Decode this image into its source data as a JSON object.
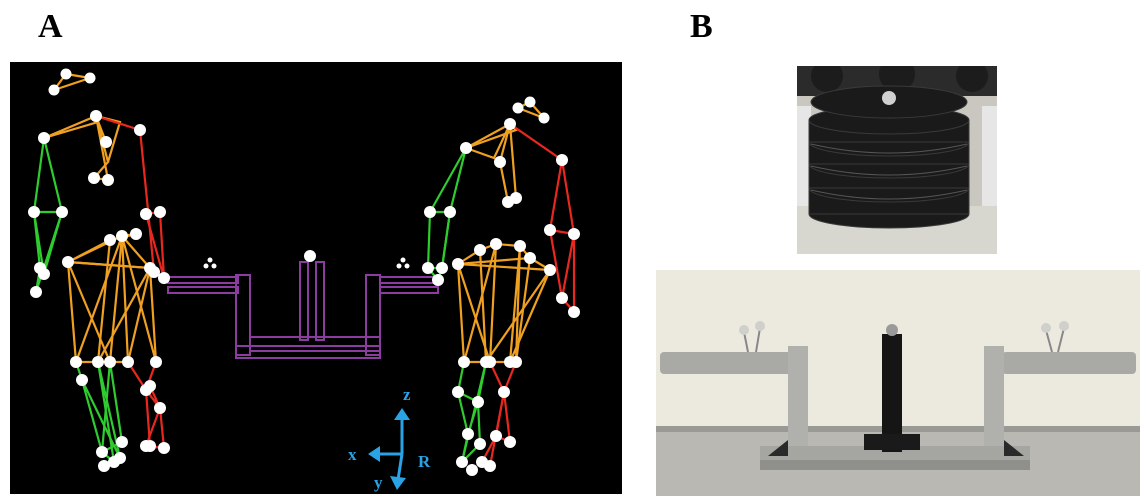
{
  "labels": {
    "panel_a": "A",
    "panel_b": "B"
  },
  "axes": {
    "x": "x",
    "y": "y",
    "z": "z",
    "r": "R"
  },
  "colors": {
    "background": "#000000",
    "left_segments": "#2ecc2e",
    "right_segments": "#e8281e",
    "center_segments": "#f0a020",
    "apparatus": "#8c3ca0",
    "markers": "#ffffff",
    "axis": "#29a3e6"
  }
}
